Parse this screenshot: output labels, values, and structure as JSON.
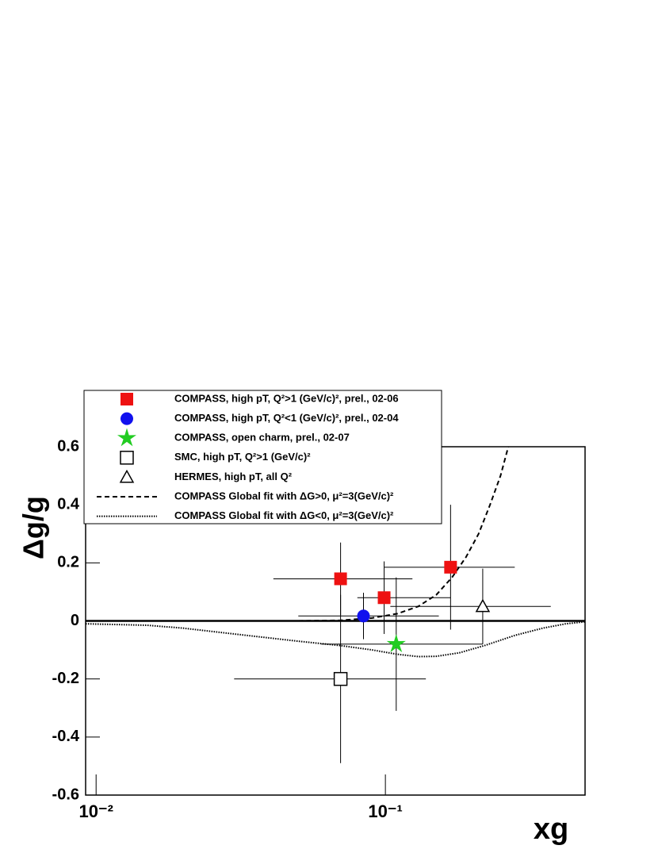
{
  "chart_data": {
    "type": "scatter",
    "y_label": "Δg/g",
    "x_label": "xg",
    "xscale": "log",
    "xlim": [
      0.0092,
      0.49
    ],
    "ylim": [
      -0.6,
      0.6
    ],
    "xticks": [
      {
        "value": 0.01,
        "label": "10⁻²"
      },
      {
        "value": 0.1,
        "label": "10⁻¹"
      }
    ],
    "yticks": [
      -0.6,
      -0.4,
      -0.2,
      0,
      0.2,
      0.4,
      0.6
    ],
    "zero_line": true,
    "series": [
      {
        "name": "COMPASS, high pT, Q²>1 (GeV/c)², prel., 02-06",
        "kind": "points",
        "marker": "square",
        "color": "#ee1111",
        "x": [
          0.07,
          0.099,
          0.168
        ],
        "values": [
          0.145,
          0.08,
          0.185
        ],
        "yerr": [
          0.125,
          0.125,
          0.215
        ],
        "x_low": [
          0.041,
          0.08,
          0.099
        ],
        "x_high": [
          0.124,
          0.168,
          0.28
        ]
      },
      {
        "name": "COMPASS, high pT, Q²<1 (GeV/c)², prel., 02-04",
        "kind": "points",
        "marker": "circle",
        "color": "#1111ee",
        "x": [
          0.084
        ],
        "values": [
          0.017
        ],
        "yerr": [
          0.08
        ],
        "x_low": [
          0.05
        ],
        "x_high": [
          0.153
        ]
      },
      {
        "name": "COMPASS, open charm, prel., 02-07",
        "kind": "points",
        "marker": "star",
        "color": "#22cc22",
        "x": [
          0.109
        ],
        "values": [
          -0.08
        ],
        "yerr": [
          0.23
        ],
        "x_low": [
          0.06
        ],
        "x_high": [
          0.217
        ]
      },
      {
        "name": "SMC, high pT, Q²>1 (GeV/c)²",
        "kind": "points",
        "marker": "open-square",
        "color": "#000000",
        "x": [
          0.07
        ],
        "values": [
          -0.2
        ],
        "yerr": [
          0.29
        ],
        "x_low": [
          0.03
        ],
        "x_high": [
          0.138
        ]
      },
      {
        "name": "HERMES, high pT, all Q²",
        "kind": "points",
        "marker": "open-triangle",
        "color": "#000000",
        "x": [
          0.217
        ],
        "values": [
          0.05
        ],
        "yerr": [
          0.13
        ],
        "x_low": [
          0.104
        ],
        "x_high": [
          0.373
        ]
      },
      {
        "name": "COMPASS Global fit with  ΔG>0, μ²=3(GeV/c)²",
        "kind": "line",
        "dash": "6,4",
        "color": "#000000",
        "x": [
          0.05,
          0.07,
          0.09,
          0.11,
          0.13,
          0.15,
          0.17,
          0.19,
          0.21,
          0.23,
          0.25,
          0.266
        ],
        "values": [
          0,
          0.002,
          0.01,
          0.025,
          0.05,
          0.09,
          0.15,
          0.22,
          0.3,
          0.4,
          0.5,
          0.6
        ]
      },
      {
        "name": "COMPASS Global fit with  ΔG<0, μ²=3(GeV/c)²",
        "kind": "line",
        "dash": "1.5,1.5",
        "color": "#000000",
        "x": [
          0.0092,
          0.015,
          0.02,
          0.03,
          0.05,
          0.07,
          0.09,
          0.11,
          0.13,
          0.15,
          0.18,
          0.22,
          0.28,
          0.35,
          0.42,
          0.49
        ],
        "values": [
          -0.01,
          -0.015,
          -0.025,
          -0.045,
          -0.07,
          -0.085,
          -0.1,
          -0.115,
          -0.123,
          -0.122,
          -0.11,
          -0.085,
          -0.05,
          -0.025,
          -0.01,
          -0.003
        ]
      }
    ]
  }
}
